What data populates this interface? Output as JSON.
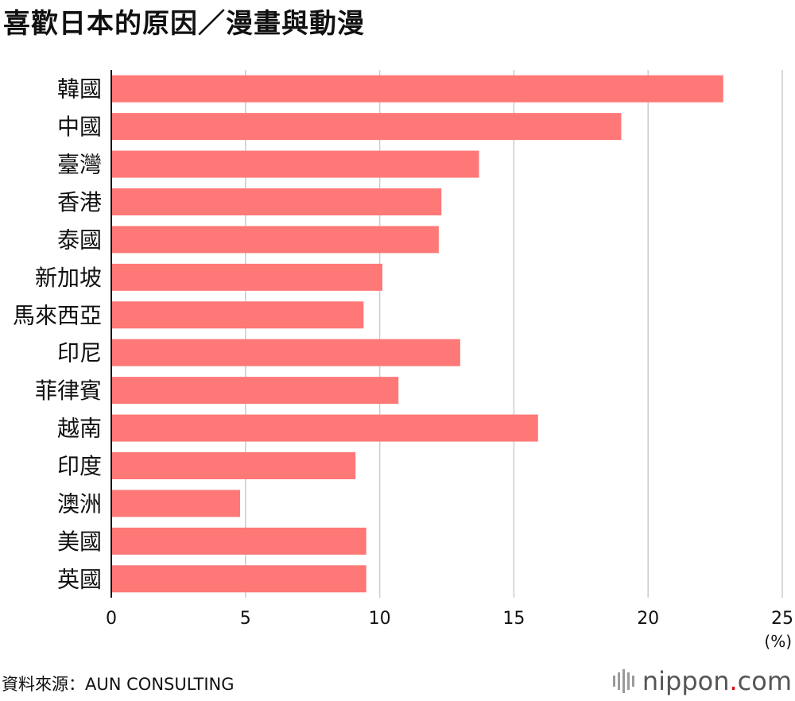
{
  "chart_data": {
    "type": "bar",
    "orientation": "horizontal",
    "title": "喜歡日本的原因／漫畫與動漫",
    "categories": [
      "韓國",
      "中國",
      "臺灣",
      "香港",
      "泰國",
      "新加坡",
      "馬來西亞",
      "印尼",
      "菲律賓",
      "越南",
      "印度",
      "澳洲",
      "美國",
      "英國"
    ],
    "values": [
      22.8,
      19.0,
      13.7,
      12.3,
      12.2,
      10.1,
      9.4,
      13.0,
      10.7,
      15.9,
      9.1,
      4.8,
      9.5,
      9.5
    ],
    "xlim": [
      0,
      25
    ],
    "xticks": [
      "0",
      "5",
      "10",
      "15",
      "20",
      "25"
    ],
    "unit_label": "(%)",
    "grid": true,
    "bar_color": "#ff7878",
    "grid_color": "#cccccc"
  },
  "footer": {
    "source": "資料來源：AUN CONSULTING",
    "brand_name": "nippon",
    "brand_dot": ".",
    "brand_tld": "com"
  }
}
